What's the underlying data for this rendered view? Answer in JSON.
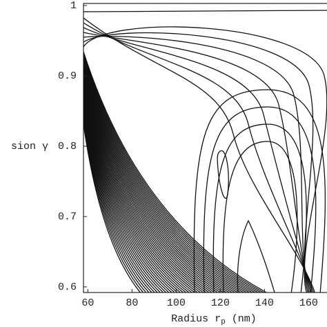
{
  "chart_data": {
    "type": "contour",
    "x_label": {
      "main": "Radius r",
      "sub": "p",
      "unit": " (nm)"
    },
    "y_label": "sion γ",
    "xlim": [
      58,
      168
    ],
    "xticks": [
      60,
      80,
      100,
      120,
      140,
      160
    ],
    "ylim": [
      0.592,
      1.003
    ],
    "yticks": [
      {
        "value": 0.6,
        "label": "0.6"
      },
      {
        "value": 0.7,
        "label": "0.7"
      },
      {
        "value": 0.8,
        "label": "0.8"
      },
      {
        "value": 0.9,
        "label": "0.9"
      },
      {
        "value": 1,
        "label": "1"
      }
    ],
    "color": "#111111"
  }
}
